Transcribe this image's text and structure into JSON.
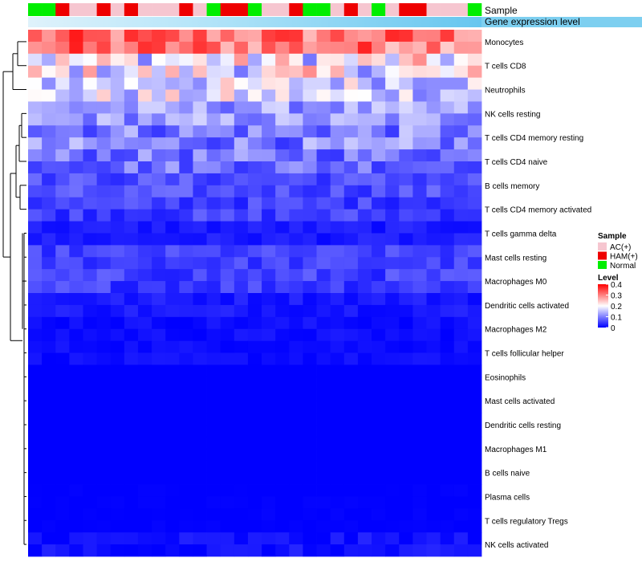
{
  "chart_data": {
    "type": "heatmap",
    "annotation_tracks": [
      "Sample",
      "Gene expression level"
    ],
    "sample_groups": [
      "N",
      "N",
      "H",
      "A",
      "A",
      "H",
      "A",
      "H",
      "A",
      "A",
      "A",
      "H",
      "A",
      "N",
      "H",
      "H",
      "N",
      "A",
      "A",
      "H",
      "N",
      "N",
      "A",
      "H",
      "A",
      "N",
      "A",
      "H",
      "H",
      "A",
      "A",
      "A",
      "N"
    ],
    "row_labels": [
      "Monocytes",
      "T cells CD8",
      "Neutrophils",
      "NK cells resting",
      "T cells CD4 memory resting",
      "T cells CD4 naive",
      "B cells memory",
      "T cells CD4 memory activated",
      "T cells gamma delta",
      "Mast cells resting",
      "Macrophages M0",
      "Dendritic cells activated",
      "Macrophages M2",
      "T cells follicular helper",
      "Eosinophils",
      "Mast cells activated",
      "Dendritic cells resting",
      "Macrophages M1",
      "B cells naive",
      "Plasma cells",
      "T cells regulatory  Tregs",
      "NK cells activated"
    ],
    "row_subrows": [
      2,
      2,
      2,
      2,
      2,
      2,
      2,
      2,
      2,
      2,
      2,
      2,
      2,
      2,
      2,
      2,
      2,
      2,
      2,
      2,
      2,
      2
    ],
    "row_means": [
      0.31,
      0.19,
      0.17,
      0.12,
      0.1,
      0.09,
      0.06,
      0.05,
      0.02,
      0.05,
      0.05,
      0.02,
      0.01,
      0.01,
      0.0,
      0.0,
      0.0,
      0.0,
      0.0,
      0.0,
      0.0,
      0.01
    ],
    "row_spread": [
      0.07,
      0.1,
      0.08,
      0.05,
      0.06,
      0.05,
      0.03,
      0.03,
      0.015,
      0.025,
      0.03,
      0.015,
      0.012,
      0.01,
      0.0,
      0.0,
      0.0,
      0.0,
      0.0,
      0.003,
      0.004,
      0.02
    ],
    "legend": {
      "sample_title": "Sample",
      "sample_entries": [
        {
          "key": "A",
          "label": "AC(+)",
          "color": "#f6c6d0"
        },
        {
          "key": "H",
          "label": "HAM(+)",
          "color": "#ee0000"
        },
        {
          "key": "N",
          "label": "Normal",
          "color": "#00ee00"
        }
      ],
      "level_title": "Level",
      "level_ticks": [
        "0.4",
        "0.3",
        "0.2",
        "0.1",
        "0"
      ],
      "level_range": [
        0,
        0.4
      ]
    },
    "colors": {
      "low": "#0000ff",
      "mid": "#ffffff",
      "high": "#ff0000",
      "expr_track": "#9fdcf5"
    }
  }
}
